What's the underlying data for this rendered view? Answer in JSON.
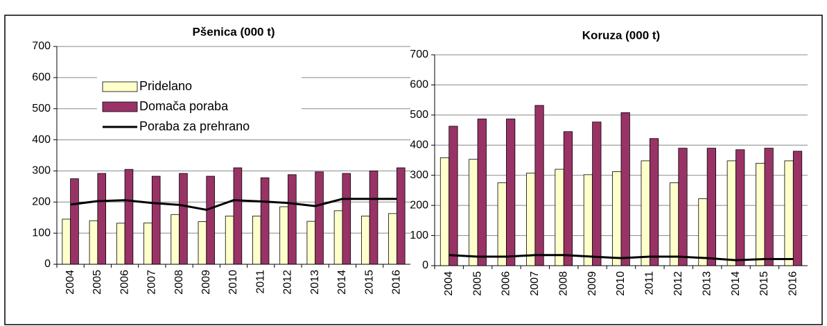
{
  "chart_data": [
    {
      "type": "bar",
      "title": "Pšenica (000 t)",
      "categories": [
        "2004",
        "2005",
        "2006",
        "2007",
        "2008",
        "2009",
        "2010",
        "2011",
        "2012",
        "2013",
        "2014",
        "2015",
        "2016"
      ],
      "series": [
        {
          "name": "Pridelano",
          "type": "bar",
          "color": "#ffffcc",
          "values": [
            145,
            140,
            132,
            133,
            160,
            137,
            155,
            155,
            185,
            138,
            172,
            155,
            163
          ]
        },
        {
          "name": "Domača poraba",
          "type": "bar",
          "color": "#993366",
          "values": [
            275,
            292,
            305,
            283,
            292,
            283,
            310,
            278,
            288,
            297,
            292,
            300,
            310
          ]
        },
        {
          "name": "Poraba za prehrano",
          "type": "line",
          "color": "#000000",
          "values": [
            192,
            203,
            206,
            197,
            191,
            175,
            206,
            202,
            197,
            187,
            210,
            210,
            210
          ]
        }
      ],
      "ylim": [
        0,
        700
      ],
      "yticks": [
        0,
        100,
        200,
        300,
        400,
        500,
        600,
        700
      ],
      "grid": true,
      "legend": "upper left"
    },
    {
      "type": "bar",
      "title": "Koruza (000 t)",
      "categories": [
        "2004",
        "2005",
        "2006",
        "2007",
        "2008",
        "2009",
        "2010",
        "2011",
        "2012",
        "2013",
        "2014",
        "2015",
        "2016"
      ],
      "series": [
        {
          "name": "Pridelano",
          "type": "bar",
          "color": "#ffffcc",
          "values": [
            358,
            353,
            275,
            307,
            320,
            302,
            312,
            348,
            275,
            222,
            348,
            340,
            348
          ]
        },
        {
          "name": "Domača poraba",
          "type": "bar",
          "color": "#993366",
          "values": [
            463,
            487,
            487,
            532,
            445,
            477,
            508,
            422,
            390,
            390,
            385,
            390,
            380
          ]
        },
        {
          "name": "Poraba za prehrano",
          "type": "line",
          "color": "#000000",
          "values": [
            35,
            30,
            30,
            35,
            35,
            30,
            25,
            30,
            30,
            25,
            18,
            22,
            22
          ]
        }
      ],
      "ylim": [
        0,
        700
      ],
      "yticks": [
        0,
        100,
        200,
        300,
        400,
        500,
        600,
        700
      ],
      "grid": true
    }
  ]
}
